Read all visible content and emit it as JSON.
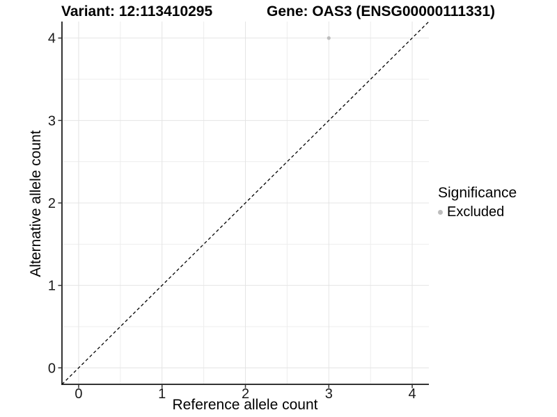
{
  "chart_data": {
    "type": "scatter",
    "title_left": "Variant: 12:113410295",
    "title_right": "Gene: OAS3 (ENSG00000111331)",
    "xlabel": "Reference allele count",
    "ylabel": "Alternative allele count",
    "xlim": [
      -0.2,
      4.2
    ],
    "ylim": [
      -0.2,
      4.2
    ],
    "x_ticks": [
      0,
      1,
      2,
      3,
      4
    ],
    "y_ticks": [
      0,
      1,
      2,
      3,
      4
    ],
    "x_minor_ticks": [
      0.5,
      1.5,
      2.5,
      3.5
    ],
    "y_minor_ticks": [
      0.5,
      1.5,
      2.5,
      3.5
    ],
    "grid": "on",
    "points": [
      {
        "x": 3,
        "y": 4,
        "series": "Excluded"
      }
    ],
    "series": [
      {
        "name": "Excluded",
        "color": "#bdbdbd"
      }
    ],
    "reference_line": {
      "slope": 1,
      "intercept": 0,
      "style": "dashed",
      "color": "#000000"
    },
    "legend": {
      "title": "Significance",
      "position": "right",
      "items": [
        {
          "label": "Excluded",
          "color": "#bdbdbd"
        }
      ]
    }
  },
  "style_colors": {
    "background": "#ffffff",
    "grid_major": "#e4e4e4",
    "grid_minor": "#ededed",
    "axis_line": "#333333",
    "tick_text": "#1a1a1a",
    "point": "#bdbdbd"
  }
}
